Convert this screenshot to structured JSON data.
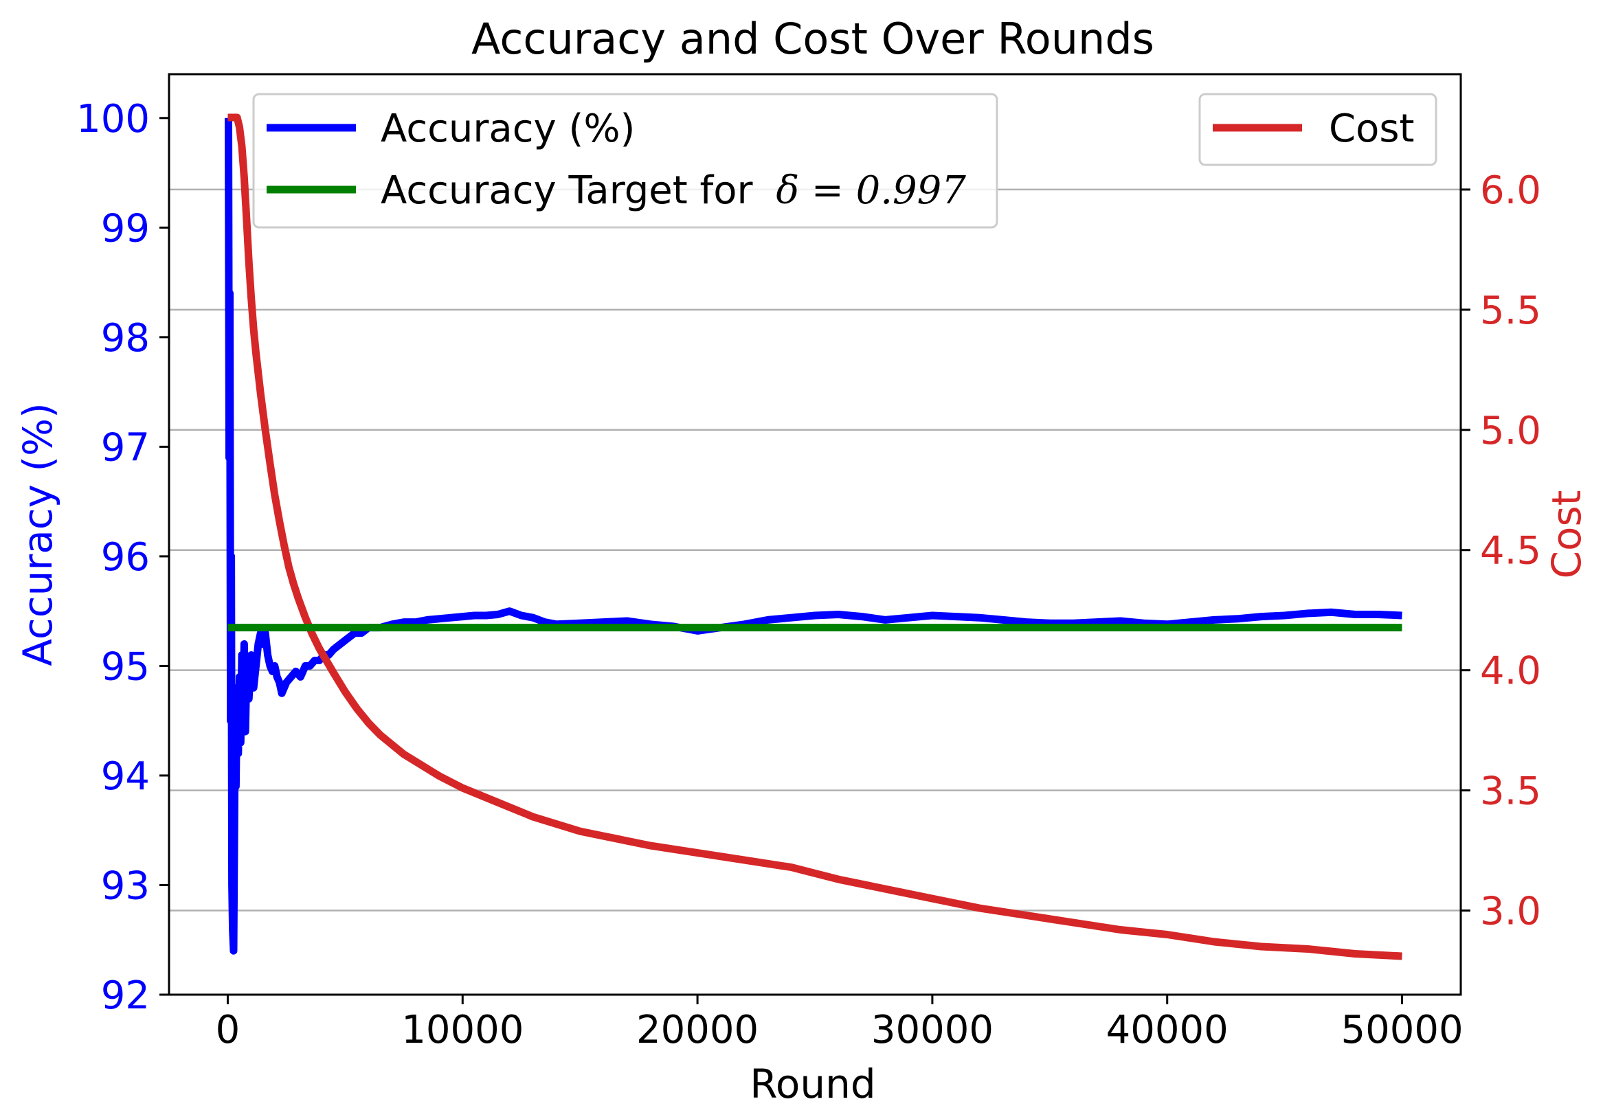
{
  "chart_data": {
    "type": "line",
    "title": "Accuracy and Cost Over Rounds",
    "xlabel": "Round",
    "ylabel_left": "Accuracy (%)",
    "ylabel_right": "Cost",
    "xlim": [
      -2500,
      52500
    ],
    "ylim_left": [
      92,
      100.4
    ],
    "ylim_right": [
      2.65,
      6.48
    ],
    "x_ticks": [
      0,
      10000,
      20000,
      30000,
      40000,
      50000
    ],
    "x_tick_labels": [
      "0",
      "10000",
      "20000",
      "30000",
      "40000",
      "50000"
    ],
    "y_left_ticks": [
      92,
      93,
      94,
      95,
      96,
      97,
      98,
      99,
      100
    ],
    "y_left_tick_labels": [
      "92",
      "93",
      "94",
      "95",
      "96",
      "97",
      "98",
      "99",
      "100"
    ],
    "y_right_ticks": [
      3.0,
      3.5,
      4.0,
      4.5,
      5.0,
      5.5,
      6.0
    ],
    "y_right_tick_labels": [
      "3.0",
      "3.5",
      "4.0",
      "4.5",
      "5.0",
      "5.5",
      "6.0"
    ],
    "grid": "horizontal lines at right-axis ticks",
    "legend_left": {
      "placement": "upper-left",
      "entries": [
        "Accuracy (%)",
        "Accuracy Target for"
      ],
      "target_math": "δ = 0.997"
    },
    "legend_right": {
      "placement": "upper-right",
      "entries": [
        "Cost"
      ]
    },
    "colors": {
      "accuracy": "#0000ff",
      "target": "#008000",
      "cost": "#d62728",
      "axis": "#000000",
      "grid": "#b0b0b0"
    },
    "series": [
      {
        "name": "Accuracy (%)",
        "axis": "left",
        "x": [
          0,
          30,
          60,
          90,
          120,
          150,
          180,
          210,
          250,
          300,
          350,
          400,
          450,
          500,
          550,
          600,
          650,
          700,
          750,
          800,
          900,
          1000,
          1100,
          1200,
          1300,
          1400,
          1500,
          1600,
          1700,
          1800,
          1900,
          2000,
          2100,
          2200,
          2300,
          2500,
          2700,
          2900,
          3100,
          3300,
          3500,
          3700,
          3900,
          4100,
          4300,
          4500,
          4800,
          5100,
          5400,
          5700,
          6000,
          6500,
          7000,
          7500,
          8000,
          8500,
          9000,
          9500,
          10000,
          10500,
          11000,
          11500,
          12000,
          12500,
          13000,
          13500,
          14000,
          15000,
          16000,
          17000,
          18000,
          19000,
          20000,
          21000,
          22000,
          23000,
          24000,
          25000,
          26000,
          27000,
          28000,
          29000,
          30000,
          31000,
          32000,
          33000,
          34000,
          35000,
          36000,
          37000,
          38000,
          39000,
          40000,
          41000,
          42000,
          43000,
          44000,
          45000,
          46000,
          47000,
          48000,
          49000,
          50000
        ],
        "y": [
          100,
          100,
          96.9,
          98.4,
          94.5,
          96.0,
          93.0,
          92.6,
          92.4,
          94.0,
          93.9,
          94.8,
          94.2,
          94.9,
          94.3,
          95.1,
          94.6,
          95.2,
          94.4,
          94.9,
          94.7,
          95.1,
          94.8,
          95.0,
          95.2,
          95.3,
          95.2,
          95.3,
          95.1,
          95.0,
          94.95,
          95.0,
          94.9,
          94.85,
          94.75,
          94.85,
          94.9,
          94.95,
          94.9,
          95.0,
          95.0,
          95.05,
          95.05,
          95.1,
          95.1,
          95.15,
          95.2,
          95.25,
          95.3,
          95.3,
          95.35,
          95.35,
          95.38,
          95.4,
          95.4,
          95.42,
          95.43,
          95.44,
          95.45,
          95.46,
          95.46,
          95.47,
          95.5,
          95.46,
          95.44,
          95.4,
          95.38,
          95.39,
          95.4,
          95.41,
          95.38,
          95.36,
          95.32,
          95.35,
          95.38,
          95.42,
          95.44,
          95.46,
          95.47,
          95.45,
          95.42,
          95.44,
          95.46,
          95.45,
          95.44,
          95.42,
          95.4,
          95.39,
          95.39,
          95.4,
          95.41,
          95.39,
          95.38,
          95.4,
          95.42,
          95.43,
          95.45,
          95.46,
          95.48,
          95.49,
          95.47,
          95.47,
          95.46
        ]
      },
      {
        "name": "Accuracy Target for",
        "axis": "left",
        "x": [
          0,
          50000
        ],
        "y": [
          95.35,
          95.35
        ]
      },
      {
        "name": "Cost",
        "axis": "right",
        "x": [
          0,
          200,
          300,
          400,
          500,
          600,
          700,
          800,
          900,
          1000,
          1100,
          1200,
          1400,
          1600,
          1800,
          2000,
          2200,
          2400,
          2600,
          2800,
          3000,
          3300,
          3600,
          3900,
          4200,
          4500,
          5000,
          5500,
          6000,
          6500,
          7000,
          7500,
          8000,
          9000,
          10000,
          11000,
          12000,
          13000,
          14000,
          15000,
          16000,
          17000,
          18000,
          20000,
          22000,
          24000,
          26000,
          28000,
          30000,
          32000,
          34000,
          36000,
          38000,
          40000,
          42000,
          44000,
          46000,
          48000,
          50000
        ],
        "y": [
          6.3,
          6.3,
          6.3,
          6.3,
          6.26,
          6.18,
          6.05,
          5.88,
          5.7,
          5.55,
          5.42,
          5.32,
          5.15,
          5.0,
          4.86,
          4.73,
          4.62,
          4.52,
          4.43,
          4.36,
          4.3,
          4.22,
          4.15,
          4.09,
          4.04,
          3.99,
          3.91,
          3.84,
          3.78,
          3.73,
          3.69,
          3.65,
          3.62,
          3.56,
          3.51,
          3.47,
          3.43,
          3.39,
          3.36,
          3.33,
          3.31,
          3.29,
          3.27,
          3.24,
          3.21,
          3.18,
          3.13,
          3.09,
          3.05,
          3.01,
          2.98,
          2.95,
          2.92,
          2.9,
          2.87,
          2.85,
          2.84,
          2.82,
          2.81
        ]
      }
    ]
  }
}
